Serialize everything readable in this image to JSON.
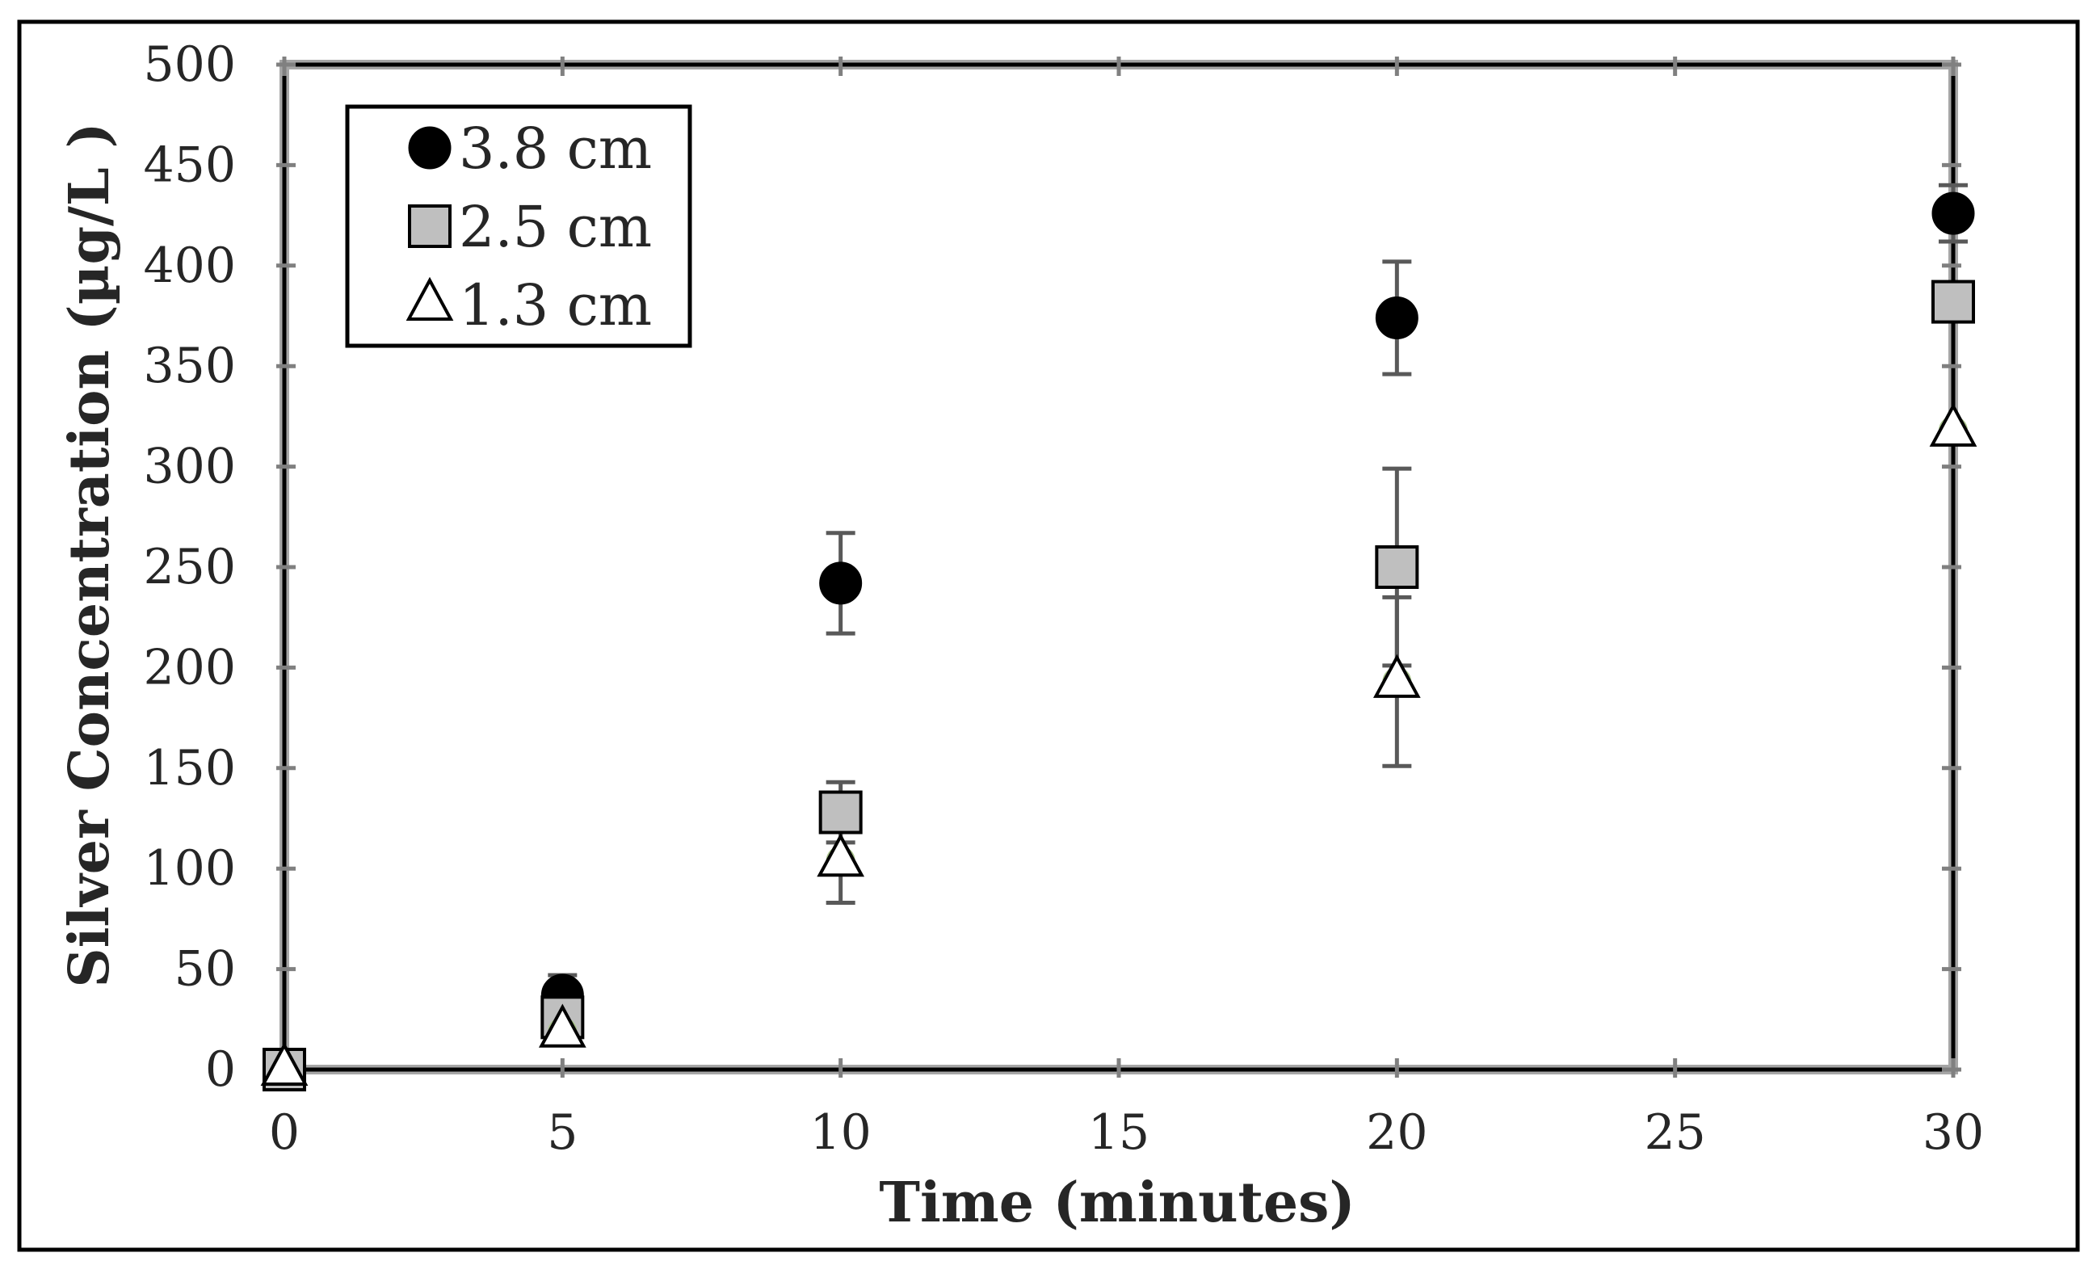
{
  "chart_data": {
    "type": "scatter",
    "title": "",
    "xlabel": "Time (minutes)",
    "ylabel": "Silver Concentration (µg/L )",
    "xlim": [
      0,
      30
    ],
    "ylim": [
      0,
      500
    ],
    "x_ticks": [
      0,
      5,
      10,
      15,
      20,
      25,
      30
    ],
    "y_ticks": [
      0,
      50,
      100,
      150,
      200,
      250,
      300,
      350,
      400,
      450,
      500
    ],
    "grid": false,
    "legend_position": "top-left",
    "series": [
      {
        "name": "3.8 cm",
        "marker": "circle",
        "fill": "#000000",
        "x": [
          0,
          5,
          10,
          20,
          30
        ],
        "y": [
          0,
          37,
          242,
          374,
          426
        ],
        "err": [
          0,
          10,
          25,
          28,
          14
        ]
      },
      {
        "name": "2.5 cm",
        "marker": "square",
        "fill": "#bfbfbf",
        "x": [
          0,
          5,
          10,
          20,
          30
        ],
        "y": [
          0,
          26,
          128,
          250,
          382
        ],
        "err": [
          0,
          8,
          15,
          49,
          0
        ]
      },
      {
        "name": "1.3 cm",
        "marker": "triangle",
        "fill": "#ffffff",
        "x": [
          0,
          5,
          10,
          20,
          30
        ],
        "y": [
          0,
          19,
          104,
          193,
          318
        ],
        "err": [
          0,
          0,
          21,
          42,
          0
        ]
      }
    ]
  }
}
